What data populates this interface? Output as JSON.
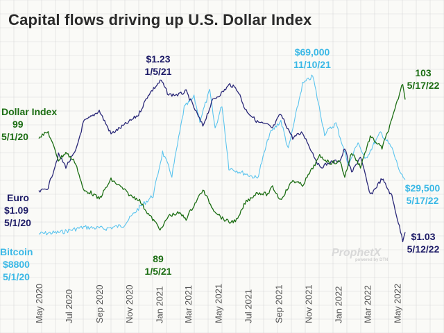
{
  "title": "Capital flows driving up U.S. Dollar Index",
  "watermark": {
    "brand": "ProphetX",
    "sub": "powered by DTN"
  },
  "colors": {
    "dollar": "#1b6d12",
    "euro": "#2a2878",
    "bitcoin": "#5bc4ee",
    "grid": "#d9d9d9",
    "background": "#fafaf7"
  },
  "annotations": {
    "euro_peak": {
      "value": "$1.23",
      "date": "1/5/21"
    },
    "btc_peak": {
      "value": "$69,000",
      "date": "11/10/21"
    },
    "dollar_end": {
      "value": "103",
      "date": "5/17/22"
    },
    "dollar_start": {
      "label": "Dollar Index",
      "value": "99",
      "date": "5/1/20"
    },
    "euro_start": {
      "label": "Euro",
      "value": "$1.09",
      "date": "5/1/20"
    },
    "btc_start": {
      "label": "Bitcoin",
      "value": "$8800",
      "date": "5/1/20"
    },
    "dollar_low": {
      "value": "89",
      "date": "1/5/21"
    },
    "btc_end": {
      "value": "$29,500",
      "date": "5/17/22"
    },
    "euro_end": {
      "value": "$1.03",
      "date": "5/12/22"
    }
  },
  "chart_data": {
    "type": "line",
    "title": "Capital flows driving up U.S. Dollar Index",
    "x_ticks": [
      "May 2020",
      "Jul 2020",
      "Sep 2020",
      "Nov 2020",
      "Jan 2021",
      "Mar 2021",
      "May 2021",
      "Jul 2021",
      "Sep 2021",
      "Nov 2021",
      "Jan 2022",
      "Mar 2022",
      "May 2022"
    ],
    "x_range": [
      "2020-05-01",
      "2022-05-17"
    ],
    "grid": true,
    "series": [
      {
        "name": "Dollar Index",
        "color": "#1b6d12",
        "points": [
          [
            "2020-05-01",
            99
          ],
          [
            "2020-05-20",
            99.5
          ],
          [
            "2020-06-10",
            96.5
          ],
          [
            "2020-06-25",
            97.3
          ],
          [
            "2020-07-15",
            96.2
          ],
          [
            "2020-07-31",
            93.2
          ],
          [
            "2020-08-15",
            93.0
          ],
          [
            "2020-09-01",
            92.3
          ],
          [
            "2020-09-25",
            94.4
          ],
          [
            "2020-10-15",
            93.6
          ],
          [
            "2020-11-05",
            92.6
          ],
          [
            "2020-11-20",
            92.3
          ],
          [
            "2020-12-10",
            90.7
          ],
          [
            "2021-01-05",
            89.0
          ],
          [
            "2021-01-20",
            90.5
          ],
          [
            "2021-02-10",
            90.8
          ],
          [
            "2021-02-25",
            90.2
          ],
          [
            "2021-03-31",
            93.3
          ],
          [
            "2021-04-20",
            91.3
          ],
          [
            "2021-05-10",
            90.2
          ],
          [
            "2021-05-25",
            89.8
          ],
          [
            "2021-06-10",
            90.1
          ],
          [
            "2021-06-25",
            91.9
          ],
          [
            "2021-07-20",
            93.0
          ],
          [
            "2021-08-10",
            92.8
          ],
          [
            "2021-08-20",
            93.6
          ],
          [
            "2021-09-05",
            92.2
          ],
          [
            "2021-09-30",
            94.3
          ],
          [
            "2021-10-20",
            93.8
          ],
          [
            "2021-11-24",
            96.9
          ],
          [
            "2021-12-15",
            96.2
          ],
          [
            "2022-01-05",
            96.3
          ],
          [
            "2022-01-14",
            94.7
          ],
          [
            "2022-01-28",
            97.3
          ],
          [
            "2022-02-15",
            95.8
          ],
          [
            "2022-03-07",
            99.0
          ],
          [
            "2022-03-31",
            97.8
          ],
          [
            "2022-04-20",
            100.8
          ],
          [
            "2022-05-12",
            104.8
          ],
          [
            "2022-05-17",
            103.0
          ]
        ]
      },
      {
        "name": "Euro",
        "color": "#2a2878",
        "points": [
          [
            "2020-05-01",
            1.09
          ],
          [
            "2020-05-20",
            1.096
          ],
          [
            "2020-06-10",
            1.137
          ],
          [
            "2020-06-25",
            1.122
          ],
          [
            "2020-07-15",
            1.141
          ],
          [
            "2020-07-31",
            1.178
          ],
          [
            "2020-08-15",
            1.184
          ],
          [
            "2020-09-01",
            1.192
          ],
          [
            "2020-09-25",
            1.163
          ],
          [
            "2020-10-15",
            1.171
          ],
          [
            "2020-11-05",
            1.18
          ],
          [
            "2020-11-20",
            1.187
          ],
          [
            "2020-12-10",
            1.212
          ],
          [
            "2021-01-05",
            1.23
          ],
          [
            "2021-01-20",
            1.212
          ],
          [
            "2021-02-10",
            1.212
          ],
          [
            "2021-02-25",
            1.216
          ],
          [
            "2021-03-31",
            1.173
          ],
          [
            "2021-04-20",
            1.205
          ],
          [
            "2021-05-10",
            1.215
          ],
          [
            "2021-05-25",
            1.225
          ],
          [
            "2021-06-10",
            1.218
          ],
          [
            "2021-06-25",
            1.194
          ],
          [
            "2021-07-20",
            1.178
          ],
          [
            "2021-08-10",
            1.174
          ],
          [
            "2021-08-20",
            1.17
          ],
          [
            "2021-09-05",
            1.188
          ],
          [
            "2021-09-30",
            1.158
          ],
          [
            "2021-10-20",
            1.165
          ],
          [
            "2021-11-24",
            1.121
          ],
          [
            "2021-12-15",
            1.127
          ],
          [
            "2022-01-05",
            1.13
          ],
          [
            "2022-01-14",
            1.145
          ],
          [
            "2022-01-28",
            1.114
          ],
          [
            "2022-02-15",
            1.135
          ],
          [
            "2022-03-07",
            1.086
          ],
          [
            "2022-03-31",
            1.107
          ],
          [
            "2022-04-20",
            1.085
          ],
          [
            "2022-05-12",
            1.03
          ],
          [
            "2022-05-17",
            1.04
          ]
        ]
      },
      {
        "name": "Bitcoin",
        "color": "#5bc4ee",
        "points": [
          [
            "2020-05-01",
            8800
          ],
          [
            "2020-06-15",
            9400
          ],
          [
            "2020-07-31",
            11300
          ],
          [
            "2020-09-15",
            10800
          ],
          [
            "2020-10-20",
            12000
          ],
          [
            "2020-11-20",
            18500
          ],
          [
            "2020-12-20",
            23500
          ],
          [
            "2021-01-08",
            40000
          ],
          [
            "2021-01-27",
            31000
          ],
          [
            "2021-02-21",
            57000
          ],
          [
            "2021-03-13",
            61000
          ],
          [
            "2021-03-25",
            52000
          ],
          [
            "2021-04-14",
            63500
          ],
          [
            "2021-04-25",
            49000
          ],
          [
            "2021-05-09",
            58000
          ],
          [
            "2021-05-23",
            34000
          ],
          [
            "2021-06-22",
            32000
          ],
          [
            "2021-07-20",
            30000
          ],
          [
            "2021-08-14",
            47000
          ],
          [
            "2021-09-06",
            52000
          ],
          [
            "2021-09-21",
            41000
          ],
          [
            "2021-10-20",
            66000
          ],
          [
            "2021-11-10",
            69000
          ],
          [
            "2021-12-04",
            47000
          ],
          [
            "2021-12-27",
            51000
          ],
          [
            "2022-01-22",
            35000
          ],
          [
            "2022-02-10",
            44000
          ],
          [
            "2022-02-24",
            37000
          ],
          [
            "2022-03-28",
            47500
          ],
          [
            "2022-04-20",
            41500
          ],
          [
            "2022-05-09",
            31000
          ],
          [
            "2022-05-17",
            29500
          ]
        ]
      }
    ]
  }
}
